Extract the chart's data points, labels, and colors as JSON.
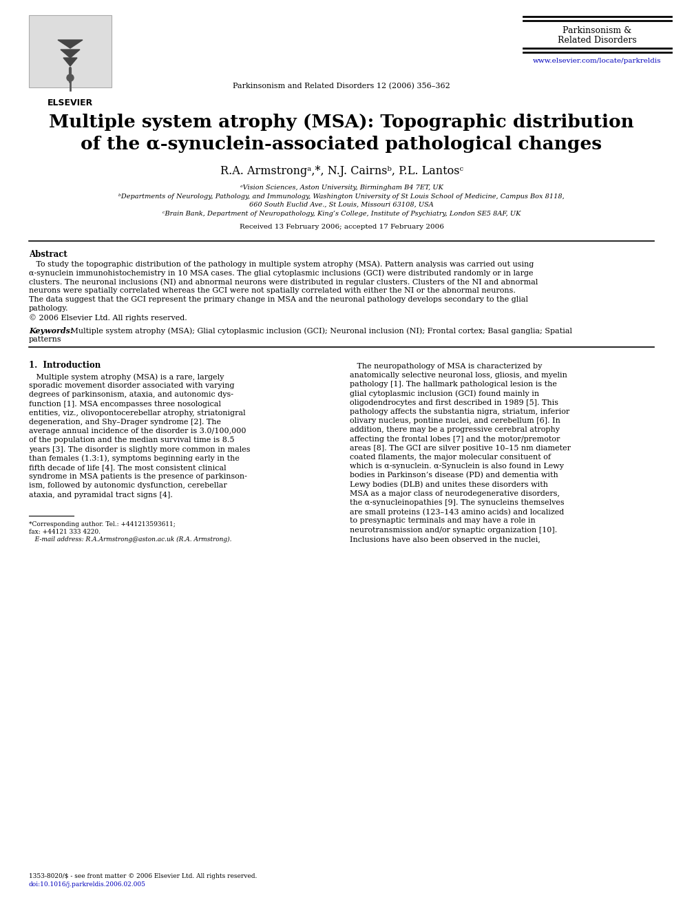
{
  "bg_color": "#ffffff",
  "title_line1": "Multiple system atrophy (MSA): Topographic distribution",
  "title_line2": "of the α-synuclein-associated pathological changes",
  "journal_name_line1": "Parkinsonism &",
  "journal_name_line2": "Related Disorders",
  "journal_citation": "Parkinsonism and Related Disorders 12 (2006) 356–362",
  "journal_url": "www.elsevier.com/locate/parkreldis",
  "authors": "R.A. Armstrongᵃ,*, N.J. Cairnsᵇ, P.L. Lantosᶜ",
  "affil_a": "ᵃVision Sciences, Aston University, Birmingham B4 7ET, UK",
  "affil_b1": "ᵇDepartments of Neurology, Pathology, and Immunology, Washington University of St Louis School of Medicine, Campus Box 8118,",
  "affil_b2": "660 South Euclid Ave., St Louis, Missouri 63108, USA",
  "affil_c": "ᶜBrain Bank, Department of Neuropathology, King’s College, Institute of Psychiatry, London SE5 8AF, UK",
  "received": "Received 13 February 2006; accepted 17 February 2006",
  "abstract_title": "Abstract",
  "abstract_lines": [
    "   To study the topographic distribution of the pathology in multiple system atrophy (MSA). Pattern analysis was carried out using",
    "α-synuclein immunohistochemistry in 10 MSA cases. The glial cytoplasmic inclusions (GCI) were distributed randomly or in large",
    "clusters. The neuronal inclusions (NI) and abnormal neurons were distributed in regular clusters. Clusters of the NI and abnormal",
    "neurons were spatially correlated whereas the GCI were not spatially correlated with either the NI or the abnormal neurons.",
    "The data suggest that the GCI represent the primary change in MSA and the neuronal pathology develops secondary to the glial",
    "pathology.",
    "© 2006 Elsevier Ltd. All rights reserved."
  ],
  "keywords_label": "Keywords:",
  "keywords_line1": " Multiple system atrophy (MSA); Glial cytoplasmic inclusion (GCI); Neuronal inclusion (NI); Frontal cortex; Basal ganglia; Spatial",
  "keywords_line2": "patterns",
  "section1_title": "1.  Introduction",
  "lines_left": [
    "   Multiple system atrophy (MSA) is a rare, largely",
    "sporadic movement disorder associated with varying",
    "degrees of parkinsonism, ataxia, and autonomic dys-",
    "function [1]. MSA encompasses three nosological",
    "entities, viz., olivopontocerebellar atrophy, striatonigral",
    "degeneration, and Shy–Drager syndrome [2]. The",
    "average annual incidence of the disorder is 3.0/100,000",
    "of the population and the median survival time is 8.5",
    "years [3]. The disorder is slightly more common in males",
    "than females (1.3:1), symptoms beginning early in the",
    "fifth decade of life [4]. The most consistent clinical",
    "syndrome in MSA patients is the presence of parkinson-",
    "ism, followed by autonomic dysfunction, cerebellar",
    "ataxia, and pyramidal tract signs [4]."
  ],
  "lines_right": [
    "   The neuropathology of MSA is characterized by",
    "anatomically selective neuronal loss, gliosis, and myelin",
    "pathology [1]. The hallmark pathological lesion is the",
    "glial cytoplasmic inclusion (GCI) found mainly in",
    "oligodendrocytes and first described in 1989 [5]. This",
    "pathology affects the substantia nigra, striatum, inferior",
    "olivary nucleus, pontine nuclei, and cerebellum [6]. In",
    "addition, there may be a progressive cerebral atrophy",
    "affecting the frontal lobes [7] and the motor/premotor",
    "areas [8]. The GCI are silver positive 10–15 nm diameter",
    "coated filaments, the major molecular consituent of",
    "which is α-synuclein. α-Synuclein is also found in Lewy",
    "bodies in Parkinson’s disease (PD) and dementia with",
    "Lewy bodies (DLB) and unites these disorders with",
    "MSA as a major class of neurodegenerative disorders,",
    "the α-synucleinopathies [9]. The synucleins themselves",
    "are small proteins (123–143 amino acids) and localized",
    "to presynaptic terminals and may have a role in",
    "neurotransmission and/or synaptic organization [10].",
    "Inclusions have also been observed in the nuclei,"
  ],
  "fn_line1": "*Corresponding author. Tel.: +441213593611;",
  "fn_line2": "fax: +44121 333 4220.",
  "fn_line3": "   E-mail address: R.A.Armstrong@aston.ac.uk (R.A. Armstrong).",
  "bottom_fn1": "1353-8020/$ - see front matter © 2006 Elsevier Ltd. All rights reserved.",
  "bottom_fn2": "doi:10.1016/j.parkreldis.2006.02.005",
  "link_color": "#0000bb",
  "text_color": "#000000",
  "elsevier_label": "ELSEVIER"
}
